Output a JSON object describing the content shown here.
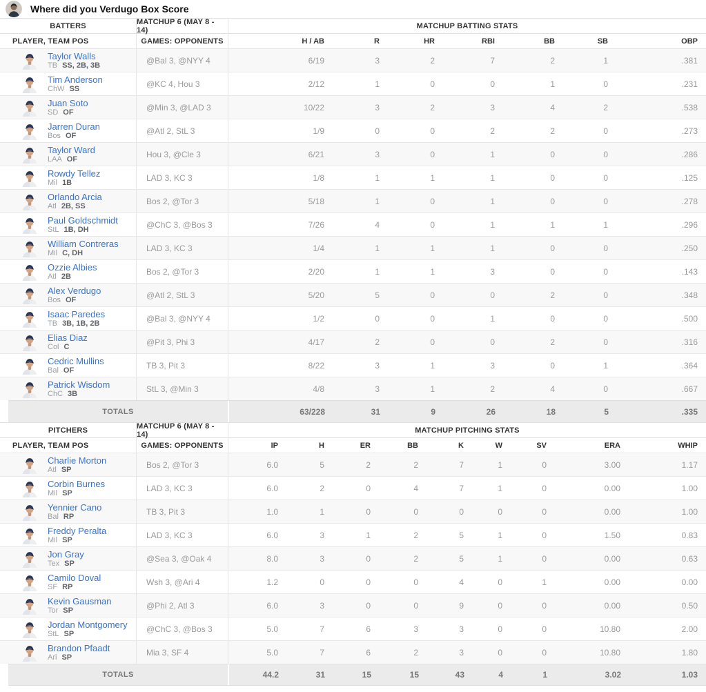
{
  "theme": {
    "link_blue": "#3574d1",
    "zebra_row": "#f8f8f8",
    "totals_bg": "#ebebeb"
  },
  "header": {
    "title": "Where did you Verdugo Box Score"
  },
  "batters": {
    "section_label": "BATTERS",
    "matchup_label": "MATCHUP 6 (MAY 8 - 14)",
    "stats_label": "MATCHUP BATTING STATS",
    "player_col_label": "PLAYER, TEAM POS",
    "games_col_label": "GAMES: OPPONENTS",
    "stat_cols": [
      "H / AB",
      "R",
      "HR",
      "RBI",
      "BB",
      "SB",
      "OBP"
    ],
    "totals_label": "TOTALS",
    "rows": [
      {
        "name": "Taylor Walls",
        "team": "TB",
        "pos": "SS, 2B, 3B",
        "opponents": "@Bal 3, @NYY 4",
        "stats": [
          "6/19",
          "3",
          "2",
          "7",
          "2",
          "1",
          ".381"
        ]
      },
      {
        "name": "Tim Anderson",
        "team": "ChW",
        "pos": "SS",
        "opponents": "@KC 4, Hou 3",
        "stats": [
          "2/12",
          "1",
          "0",
          "0",
          "1",
          "0",
          ".231"
        ]
      },
      {
        "name": "Juan Soto",
        "team": "SD",
        "pos": "OF",
        "opponents": "@Min 3, @LAD 3",
        "stats": [
          "10/22",
          "3",
          "2",
          "3",
          "4",
          "2",
          ".538"
        ]
      },
      {
        "name": "Jarren Duran",
        "team": "Bos",
        "pos": "OF",
        "opponents": "@Atl 2, StL 3",
        "stats": [
          "1/9",
          "0",
          "0",
          "2",
          "2",
          "0",
          ".273"
        ]
      },
      {
        "name": "Taylor Ward",
        "team": "LAA",
        "pos": "OF",
        "opponents": "Hou 3, @Cle 3",
        "stats": [
          "6/21",
          "3",
          "0",
          "1",
          "0",
          "0",
          ".286"
        ]
      },
      {
        "name": "Rowdy Tellez",
        "team": "Mil",
        "pos": "1B",
        "opponents": "LAD 3, KC 3",
        "stats": [
          "1/8",
          "1",
          "1",
          "1",
          "0",
          "0",
          ".125"
        ]
      },
      {
        "name": "Orlando Arcia",
        "team": "Atl",
        "pos": "2B, SS",
        "opponents": "Bos 2, @Tor 3",
        "stats": [
          "5/18",
          "1",
          "0",
          "1",
          "0",
          "0",
          ".278"
        ]
      },
      {
        "name": "Paul Goldschmidt",
        "team": "StL",
        "pos": "1B, DH",
        "opponents": "@ChC 3, @Bos 3",
        "stats": [
          "7/26",
          "4",
          "0",
          "1",
          "1",
          "1",
          ".296"
        ]
      },
      {
        "name": "William Contreras",
        "team": "Mil",
        "pos": "C, DH",
        "opponents": "LAD 3, KC 3",
        "stats": [
          "1/4",
          "1",
          "1",
          "1",
          "0",
          "0",
          ".250"
        ]
      },
      {
        "name": "Ozzie Albies",
        "team": "Atl",
        "pos": "2B",
        "opponents": "Bos 2, @Tor 3",
        "stats": [
          "2/20",
          "1",
          "1",
          "3",
          "0",
          "0",
          ".143"
        ]
      },
      {
        "name": "Alex Verdugo",
        "team": "Bos",
        "pos": "OF",
        "opponents": "@Atl 2, StL 3",
        "stats": [
          "5/20",
          "5",
          "0",
          "0",
          "2",
          "0",
          ".348"
        ]
      },
      {
        "name": "Isaac Paredes",
        "team": "TB",
        "pos": "3B, 1B, 2B",
        "opponents": "@Bal 3, @NYY 4",
        "stats": [
          "1/2",
          "0",
          "0",
          "1",
          "0",
          "0",
          ".500"
        ]
      },
      {
        "name": "Elias Diaz",
        "team": "Col",
        "pos": "C",
        "opponents": "@Pit 3, Phi 3",
        "stats": [
          "4/17",
          "2",
          "0",
          "0",
          "2",
          "0",
          ".316"
        ]
      },
      {
        "name": "Cedric Mullins",
        "team": "Bal",
        "pos": "OF",
        "opponents": "TB 3, Pit 3",
        "stats": [
          "8/22",
          "3",
          "1",
          "3",
          "0",
          "1",
          ".364"
        ]
      },
      {
        "name": "Patrick Wisdom",
        "team": "ChC",
        "pos": "3B",
        "opponents": "StL 3, @Min 3",
        "stats": [
          "4/8",
          "3",
          "1",
          "2",
          "4",
          "0",
          ".667"
        ]
      }
    ],
    "totals": [
      "63/228",
      "31",
      "9",
      "26",
      "18",
      "5",
      ".335"
    ]
  },
  "pitchers": {
    "section_label": "PITCHERS",
    "matchup_label": "MATCHUP 6 (MAY 8 - 14)",
    "stats_label": "MATCHUP PITCHING STATS",
    "player_col_label": "PLAYER, TEAM POS",
    "games_col_label": "GAMES: OPPONENTS",
    "stat_cols": [
      "IP",
      "H",
      "ER",
      "BB",
      "K",
      "W",
      "SV",
      "ERA",
      "WHIP"
    ],
    "totals_label": "TOTALS",
    "rows": [
      {
        "name": "Charlie Morton",
        "team": "Atl",
        "pos": "SP",
        "opponents": "Bos 2, @Tor 3",
        "stats": [
          "6.0",
          "5",
          "2",
          "2",
          "7",
          "1",
          "0",
          "3.00",
          "1.17"
        ]
      },
      {
        "name": "Corbin Burnes",
        "team": "Mil",
        "pos": "SP",
        "opponents": "LAD 3, KC 3",
        "stats": [
          "6.0",
          "2",
          "0",
          "4",
          "7",
          "1",
          "0",
          "0.00",
          "1.00"
        ]
      },
      {
        "name": "Yennier Cano",
        "team": "Bal",
        "pos": "RP",
        "opponents": "TB 3, Pit 3",
        "stats": [
          "1.0",
          "1",
          "0",
          "0",
          "0",
          "0",
          "0",
          "0.00",
          "1.00"
        ]
      },
      {
        "name": "Freddy Peralta",
        "team": "Mil",
        "pos": "SP",
        "opponents": "LAD 3, KC 3",
        "stats": [
          "6.0",
          "3",
          "1",
          "2",
          "5",
          "1",
          "0",
          "1.50",
          "0.83"
        ]
      },
      {
        "name": "Jon Gray",
        "team": "Tex",
        "pos": "SP",
        "opponents": "@Sea 3, @Oak 4",
        "stats": [
          "8.0",
          "3",
          "0",
          "2",
          "5",
          "1",
          "0",
          "0.00",
          "0.63"
        ]
      },
      {
        "name": "Camilo Doval",
        "team": "SF",
        "pos": "RP",
        "opponents": "Wsh 3, @Ari 4",
        "stats": [
          "1.2",
          "0",
          "0",
          "0",
          "4",
          "0",
          "1",
          "0.00",
          "0.00"
        ]
      },
      {
        "name": "Kevin Gausman",
        "team": "Tor",
        "pos": "SP",
        "opponents": "@Phi 2, Atl 3",
        "stats": [
          "6.0",
          "3",
          "0",
          "0",
          "9",
          "0",
          "0",
          "0.00",
          "0.50"
        ]
      },
      {
        "name": "Jordan Montgomery",
        "team": "StL",
        "pos": "SP",
        "opponents": "@ChC 3, @Bos 3",
        "stats": [
          "5.0",
          "7",
          "6",
          "3",
          "3",
          "0",
          "0",
          "10.80",
          "2.00"
        ]
      },
      {
        "name": "Brandon Pfaadt",
        "team": "Ari",
        "pos": "SP",
        "opponents": "Mia 3, SF 4",
        "stats": [
          "5.0",
          "7",
          "6",
          "2",
          "3",
          "0",
          "0",
          "10.80",
          "1.80"
        ]
      }
    ],
    "totals": [
      "44.2",
      "31",
      "15",
      "15",
      "43",
      "4",
      "1",
      "3.02",
      "1.03"
    ]
  }
}
